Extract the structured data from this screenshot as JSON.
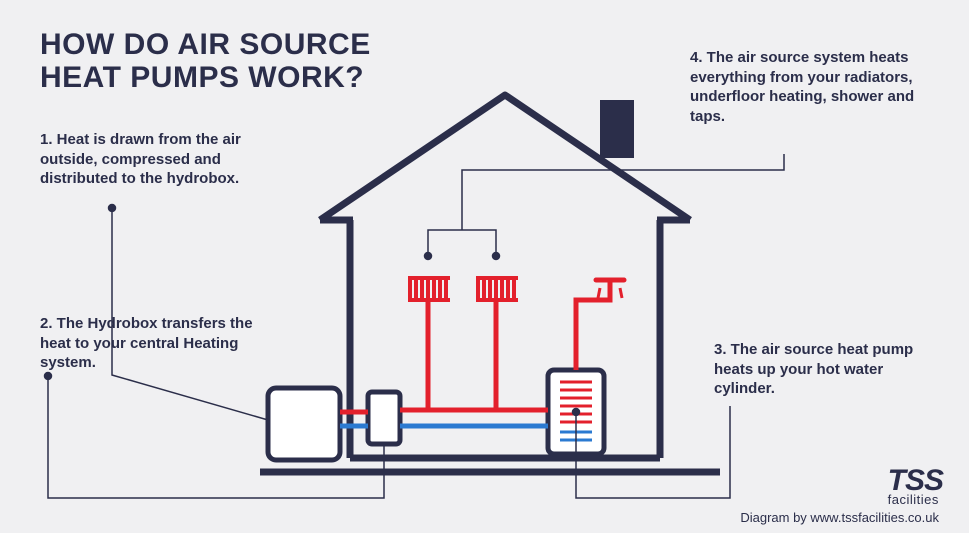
{
  "type": "infographic",
  "title": "HOW DO AIR SOURCE\nHEAT PUMPS WORK?",
  "background_color": "#f0f0f2",
  "text_color": "#2b2e4a",
  "house_stroke": "#2b2e4a",
  "house_stroke_width": 6,
  "hot_pipe_color": "#e3202c",
  "cold_pipe_color": "#2b7ad1",
  "callout_line_color": "#2b2e4a",
  "callouts": {
    "c1": "1. Heat is drawn from the air outside, compressed and distributed to the hydrobox.",
    "c2": "2. The Hydrobox transfers the heat to your central Heating system.",
    "c3": "3. The air source heat pump heats up your hot water cylinder.",
    "c4": "4. The air source system heats everything from your radiators, underfloor heating, shower and taps."
  },
  "logo": {
    "brand": "TSS",
    "sub": "facilities"
  },
  "attribution": "Diagram by www.tssfacilities.co.uk",
  "title_fontsize": 30,
  "callout_fontsize": 15
}
